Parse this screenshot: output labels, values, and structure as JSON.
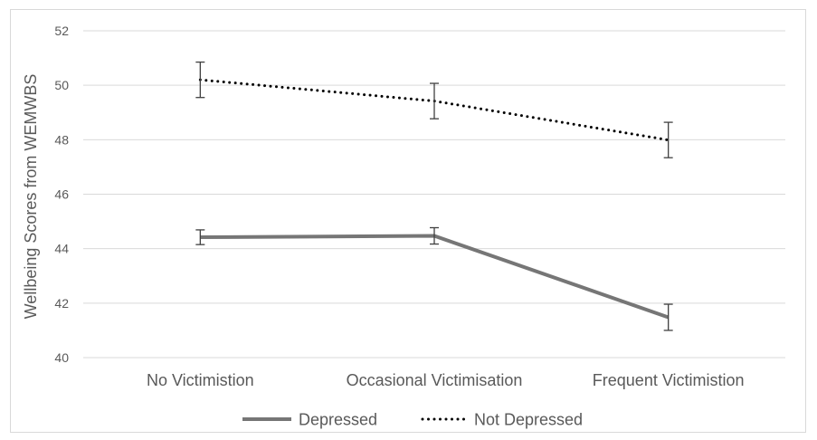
{
  "chart_data": {
    "type": "line",
    "title": "",
    "xlabel": "",
    "ylabel": "Wellbeing Scores from WEMWBS",
    "ylim": [
      40,
      52
    ],
    "yticks": [
      40,
      42,
      44,
      46,
      48,
      50,
      52
    ],
    "categories": [
      "No Victimistion",
      "Occasional Victimisation",
      "Frequent Victimistion"
    ],
    "grid": true,
    "legend_position": "bottom",
    "series": [
      {
        "name": "Depressed",
        "values": [
          44.42,
          44.47,
          41.48
        ],
        "errors": [
          0.27,
          0.3,
          0.48
        ],
        "color": "#767676",
        "style": "solid"
      },
      {
        "name": "Not Depressed",
        "values": [
          50.2,
          49.42,
          47.99
        ],
        "errors": [
          0.65,
          0.65,
          0.65
        ],
        "color": "#000000",
        "style": "dotted"
      }
    ],
    "error_bar_color": "#404040",
    "gridline_color": "#d9d9d9"
  }
}
